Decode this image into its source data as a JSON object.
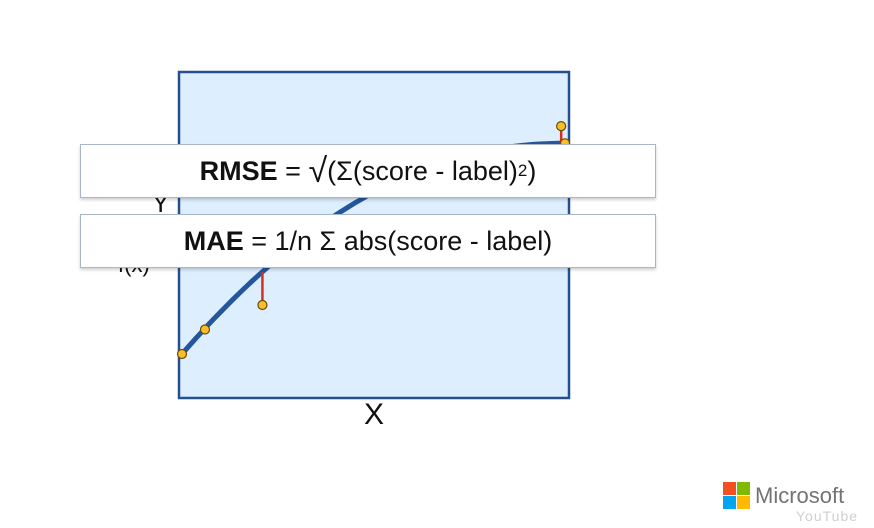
{
  "formulas": {
    "rmse": {
      "name": "RMSE",
      "equals": " = ",
      "sqrt": "√",
      "open": "(",
      "sigma": "Σ",
      "body": "(score - label)",
      "exp": "2",
      "close": ")"
    },
    "mae": {
      "name": "MAE",
      "rest": " = 1/n Σ abs(score - label)"
    }
  },
  "x_axis_label": "X",
  "y_axis_label_partial": "Y",
  "y_axis_label_partial2": "f(x)",
  "logo": {
    "text": "Microsoft",
    "colors": [
      "#f25022",
      "#7fba00",
      "#00a4ef",
      "#ffb900"
    ]
  },
  "watermark": "YouTube",
  "colors": {
    "plot_fill": "#ddeefe",
    "plot_border": "#24508f",
    "curve": "#24569e",
    "error_line": "#d9301e",
    "point_fill": "#f7bf2a",
    "point_stroke": "#6b4b00"
  },
  "chart_data": {
    "type": "scatter",
    "x": [
      0.0,
      0.06,
      0.21,
      0.99,
      1.0
    ],
    "y": [
      0.0,
      0.1,
      0.2,
      0.93,
      0.86
    ],
    "fit": [
      0.0,
      0.1,
      0.3,
      0.78,
      0.86
    ],
    "xlabel": "X",
    "ylabel": "",
    "xlim": [
      0,
      1
    ],
    "ylim": [
      0,
      1
    ]
  }
}
